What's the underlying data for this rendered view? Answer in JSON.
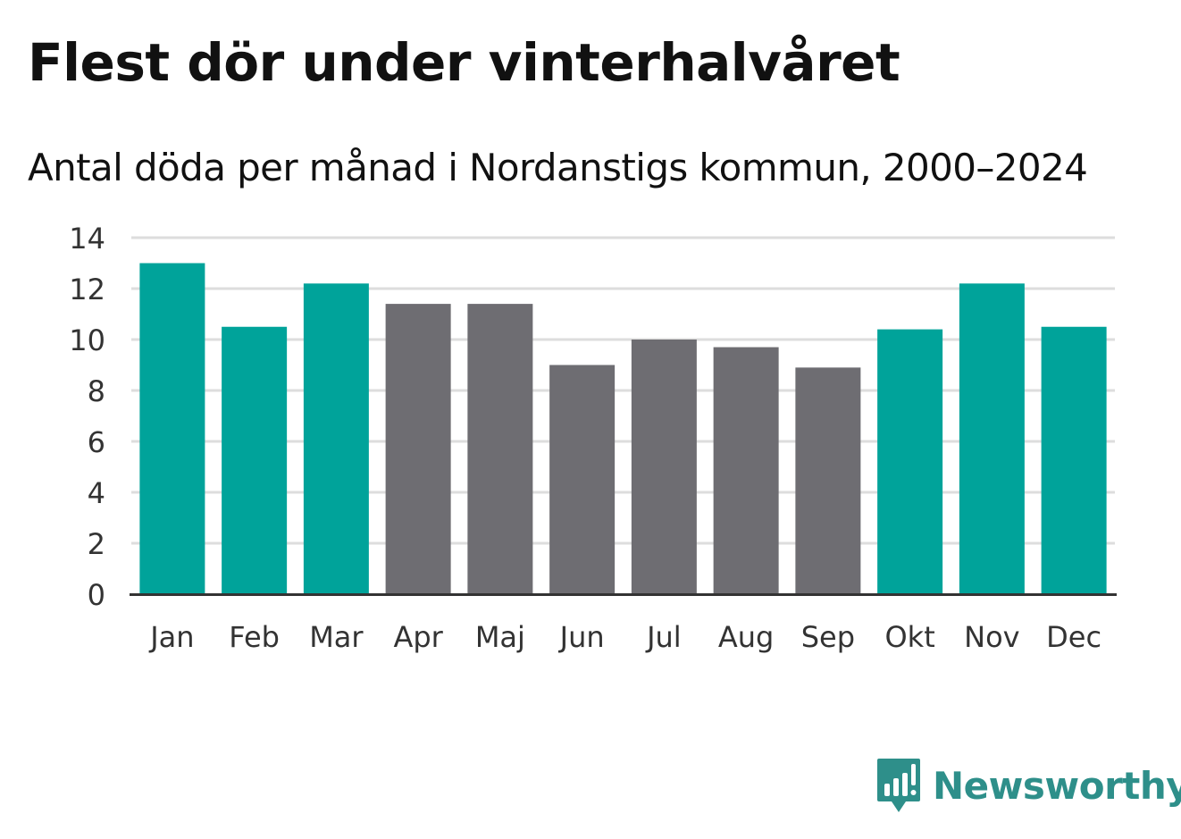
{
  "chart_data": {
    "type": "bar",
    "title": "Flest dör under vinterhalvåret",
    "subtitle": "Antal döda per månad i Nordanstigs kommun, 2000–2024",
    "categories": [
      "Jan",
      "Feb",
      "Mar",
      "Apr",
      "Maj",
      "Jun",
      "Jul",
      "Aug",
      "Sep",
      "Okt",
      "Nov",
      "Dec"
    ],
    "values": [
      13.0,
      10.5,
      12.2,
      11.4,
      11.4,
      9.0,
      10.0,
      9.7,
      8.9,
      10.4,
      12.2,
      10.5
    ],
    "highlight": [
      true,
      true,
      true,
      false,
      false,
      false,
      false,
      false,
      false,
      true,
      true,
      true
    ],
    "xlabel": "",
    "ylabel": "",
    "ylim": [
      0,
      14
    ],
    "yticks": [
      0,
      2,
      4,
      6,
      8,
      10,
      12,
      14
    ],
    "grid": true
  },
  "colors": {
    "winter": "#00a39a",
    "summer": "#6e6d72",
    "grid": "#dddddd",
    "axis": "#333333",
    "tick_text": "#333333",
    "brand": "#2e8f8a"
  },
  "brand": {
    "name": "Newsworthy",
    "icon": "newsworthy-logo-icon"
  }
}
